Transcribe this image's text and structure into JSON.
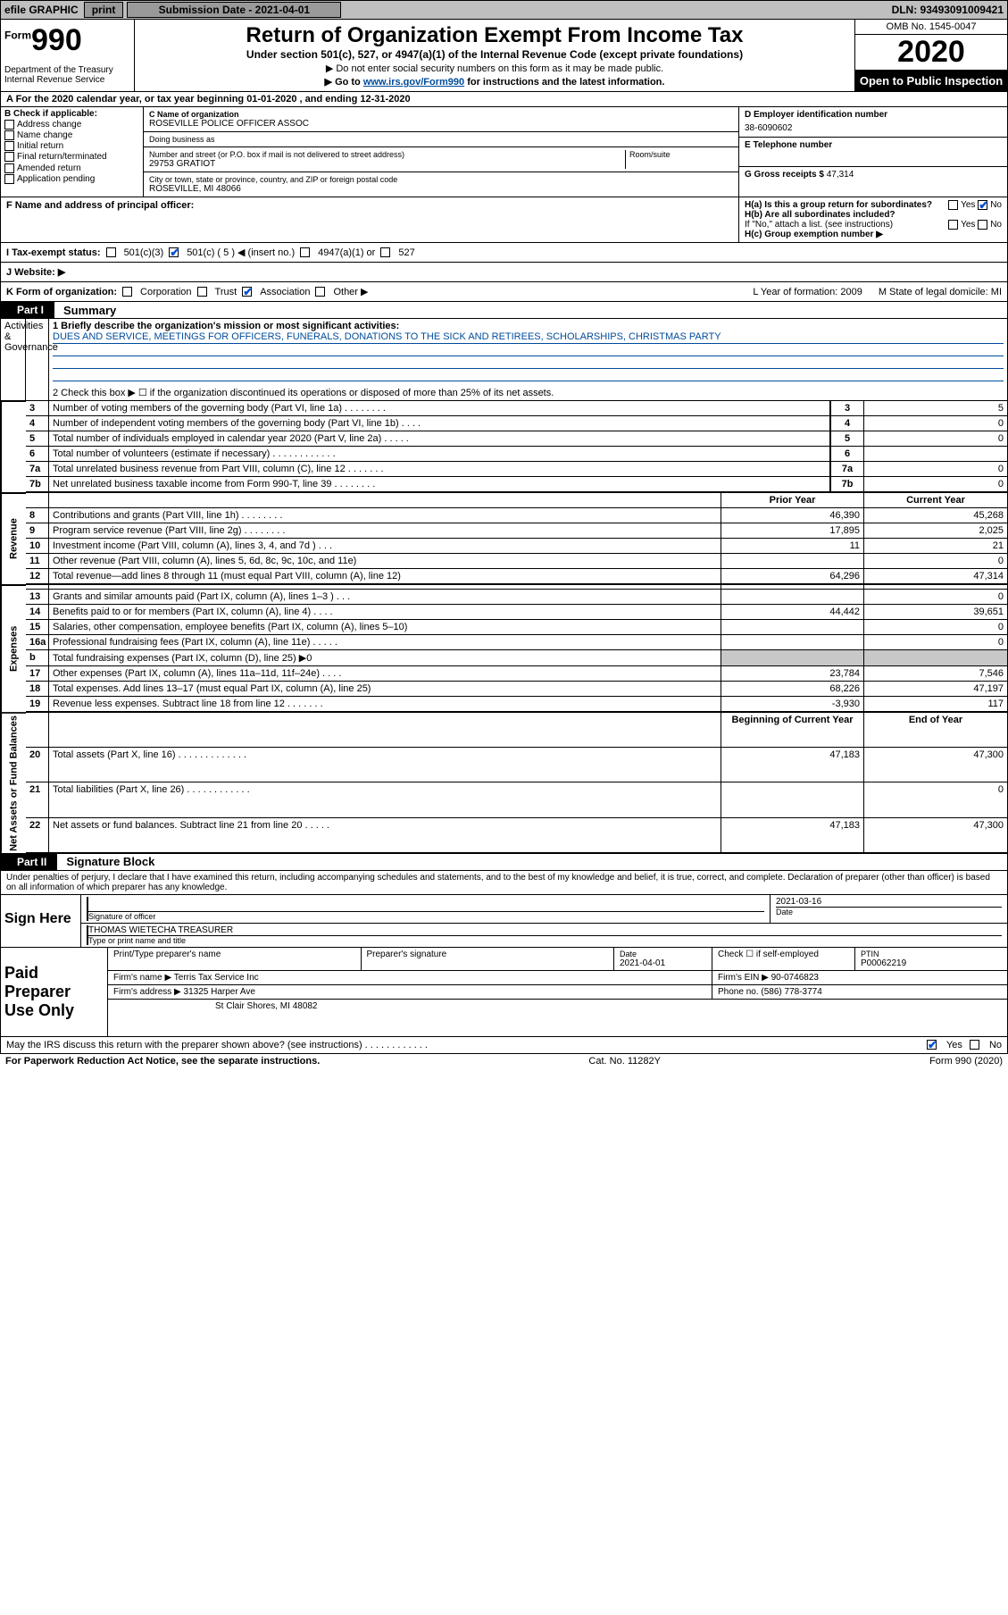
{
  "topbar": {
    "efile_label": "efile GRAPHIC",
    "print_btn": "print",
    "sub_label": "Submission Date - 2021-04-01",
    "dln": "DLN: 93493091009421"
  },
  "hdr": {
    "form_word": "Form",
    "form_num": "990",
    "dept": "Department of the Treasury\nInternal Revenue Service",
    "title": "Return of Organization Exempt From Income Tax",
    "sub": "Under section 501(c), 527, or 4947(a)(1) of the Internal Revenue Code (except private foundations)",
    "note1": "▶ Do not enter social security numbers on this form as it may be made public.",
    "note2_pre": "▶ Go to ",
    "note2_link": "www.irs.gov/Form990",
    "note2_post": " for instructions and the latest information.",
    "omb": "OMB No. 1545-0047",
    "year": "2020",
    "open_pub": "Open to Public Inspection"
  },
  "A": "A  For the 2020 calendar year, or tax year beginning 01-01-2020    , and ending 12-31-2020",
  "B": {
    "label": "B Check if applicable:",
    "opts": [
      "Address change",
      "Name change",
      "Initial return",
      "Final return/terminated",
      "Amended return",
      "Application pending"
    ]
  },
  "C": {
    "name_label": "C Name of organization",
    "name": "ROSEVILLE POLICE OFFICER ASSOC",
    "dba_label": "Doing business as",
    "dba": "",
    "street_label": "Number and street (or P.O. box if mail is not delivered to street address)",
    "street": "29753 GRATIOT",
    "room_label": "Room/suite",
    "city_label": "City or town, state or province, country, and ZIP or foreign postal code",
    "city": "ROSEVILLE, MI  48066"
  },
  "D": {
    "ein_label": "D Employer identification number",
    "ein": "38-6090602",
    "tel_label": "E Telephone number",
    "tel": "",
    "gross_label": "G Gross receipts $",
    "gross": "47,314"
  },
  "F": {
    "label": "F  Name and address of principal officer:",
    "value": ""
  },
  "H": {
    "a_label": "H(a)  Is this a group return for subordinates?",
    "a_yes": "Yes",
    "a_no": "No",
    "b_label": "H(b)  Are all subordinates included?",
    "b_note": "If \"No,\" attach a list. (see instructions)",
    "c_label": "H(c)  Group exemption number ▶"
  },
  "I": {
    "label": "I   Tax-exempt status:",
    "opts": [
      "501(c)(3)",
      "501(c) ( 5 ) ◀ (insert no.)",
      "4947(a)(1) or",
      "527"
    ]
  },
  "J": {
    "label": "J   Website: ▶",
    "value": ""
  },
  "K": {
    "label": "K Form of organization:",
    "opts": [
      "Corporation",
      "Trust",
      "Association",
      "Other ▶"
    ],
    "L": "L Year of formation: 2009",
    "M": "M State of legal domicile: MI"
  },
  "part1": {
    "tab": "Part I",
    "title": "Summary",
    "sec_labels": {
      "ag": "Activities & Governance",
      "rev": "Revenue",
      "exp": "Expenses",
      "na": "Net Assets or Fund Balances"
    },
    "line1_label": "1  Briefly describe the organization's mission or most significant activities:",
    "line1_text": "DUES AND SERVICE, MEETINGS FOR OFFICERS, FUNERALS, DONATIONS TO THE SICK AND RETIREES, SCHOLARSHIPS, CHRISTMAS PARTY",
    "line2": "2  Check this box ▶ ☐  if the organization discontinued its operations or disposed of more than 25% of its net assets.",
    "cols": {
      "prior": "Prior Year",
      "current": "Current Year",
      "boc": "Beginning of Current Year",
      "eoy": "End of Year"
    },
    "rows_ag": [
      {
        "n": "3",
        "d": "Number of voting members of the governing body (Part VI, line 1a)  .   .   .   .   .   .   .   .",
        "box": "3",
        "v": "5"
      },
      {
        "n": "4",
        "d": "Number of independent voting members of the governing body (Part VI, line 1b)  .   .   .   .",
        "box": "4",
        "v": "0"
      },
      {
        "n": "5",
        "d": "Total number of individuals employed in calendar year 2020 (Part V, line 2a)  .   .   .   .   .",
        "box": "5",
        "v": "0"
      },
      {
        "n": "6",
        "d": "Total number of volunteers (estimate if necessary)  .   .   .   .   .   .   .   .   .   .   .   .",
        "box": "6",
        "v": ""
      },
      {
        "n": "7a",
        "d": "Total unrelated business revenue from Part VIII, column (C), line 12  .   .   .   .   .   .   .",
        "box": "7a",
        "v": "0"
      },
      {
        "n": "7b",
        "d": "Net unrelated business taxable income from Form 990-T, line 39  .   .   .   .   .   .   .   .",
        "box": "7b",
        "v": "0"
      }
    ],
    "rows_rev": [
      {
        "n": "8",
        "d": "Contributions and grants (Part VIII, line 1h)  .   .   .   .   .   .   .   .",
        "p": "46,390",
        "c": "45,268"
      },
      {
        "n": "9",
        "d": "Program service revenue (Part VIII, line 2g)  .   .   .   .   .   .   .   .",
        "p": "17,895",
        "c": "2,025"
      },
      {
        "n": "10",
        "d": "Investment income (Part VIII, column (A), lines 3, 4, and 7d )  .   .   .",
        "p": "11",
        "c": "21"
      },
      {
        "n": "11",
        "d": "Other revenue (Part VIII, column (A), lines 5, 6d, 8c, 9c, 10c, and 11e)",
        "p": "",
        "c": "0"
      },
      {
        "n": "12",
        "d": "Total revenue—add lines 8 through 11 (must equal Part VIII, column (A), line 12)",
        "p": "64,296",
        "c": "47,314"
      }
    ],
    "rows_exp": [
      {
        "n": "13",
        "d": "Grants and similar amounts paid (Part IX, column (A), lines 1–3 )  .   .   .",
        "p": "",
        "c": "0"
      },
      {
        "n": "14",
        "d": "Benefits paid to or for members (Part IX, column (A), line 4)  .   .   .   .",
        "p": "44,442",
        "c": "39,651"
      },
      {
        "n": "15",
        "d": "Salaries, other compensation, employee benefits (Part IX, column (A), lines 5–10)",
        "p": "",
        "c": "0"
      },
      {
        "n": "16a",
        "d": "Professional fundraising fees (Part IX, column (A), line 11e)  .   .   .   .   .",
        "p": "",
        "c": "0"
      },
      {
        "n": "b",
        "d": "Total fundraising expenses (Part IX, column (D), line 25) ▶0",
        "p": "SHADE",
        "c": "SHADE"
      },
      {
        "n": "17",
        "d": "Other expenses (Part IX, column (A), lines 11a–11d, 11f–24e)  .   .   .   .",
        "p": "23,784",
        "c": "7,546"
      },
      {
        "n": "18",
        "d": "Total expenses. Add lines 13–17 (must equal Part IX, column (A), line 25)",
        "p": "68,226",
        "c": "47,197"
      },
      {
        "n": "19",
        "d": "Revenue less expenses. Subtract line 18 from line 12  .   .   .   .   .   .   .",
        "p": "-3,930",
        "c": "117"
      }
    ],
    "rows_na": [
      {
        "n": "20",
        "d": "Total assets (Part X, line 16)  .   .   .   .   .   .   .   .   .   .   .   .   .",
        "p": "47,183",
        "c": "47,300"
      },
      {
        "n": "21",
        "d": "Total liabilities (Part X, line 26)  .   .   .   .   .   .   .   .   .   .   .   .",
        "p": "",
        "c": "0"
      },
      {
        "n": "22",
        "d": "Net assets or fund balances. Subtract line 21 from line 20  .   .   .   .   .",
        "p": "47,183",
        "c": "47,300"
      }
    ]
  },
  "part2": {
    "tab": "Part II",
    "title": "Signature Block",
    "penalty": "Under penalties of perjury, I declare that I have examined this return, including accompanying schedules and statements, and to the best of my knowledge and belief, it is true, correct, and complete. Declaration of preparer (other than officer) is based on all information of which preparer has any knowledge."
  },
  "sign": {
    "here": "Sign Here",
    "sig_label": "Signature of officer",
    "date_label": "Date",
    "date": "2021-03-16",
    "name": "THOMAS WIETECHA  TREASURER",
    "name_label": "Type or print name and title"
  },
  "prep": {
    "label": "Paid Preparer Use Only",
    "r1": {
      "a": "Print/Type preparer's name",
      "b": "Preparer's signature",
      "c_lbl": "Date",
      "c": "2021-04-01",
      "d": "Check ☐ if self-employed",
      "e_lbl": "PTIN",
      "e": "P00062219"
    },
    "r2": {
      "a_lbl": "Firm's name    ▶",
      "a": "Terris Tax Service Inc",
      "b_lbl": "Firm's EIN ▶",
      "b": "90-0746823"
    },
    "r3": {
      "a_lbl": "Firm's address ▶",
      "a": "31325 Harper Ave",
      "b_lbl": "Phone no.",
      "b": "(586) 778-3774"
    },
    "r4": "St Clair Shores, MI  48082"
  },
  "irs": {
    "q": "May the IRS discuss this return with the preparer shown above? (see instructions)  .   .   .   .   .   .   .   .   .   .   .   .",
    "yes": "Yes",
    "no": "No"
  },
  "footer": {
    "left": "For Paperwork Reduction Act Notice, see the separate instructions.",
    "mid": "Cat. No. 11282Y",
    "right": "Form 990 (2020)"
  }
}
